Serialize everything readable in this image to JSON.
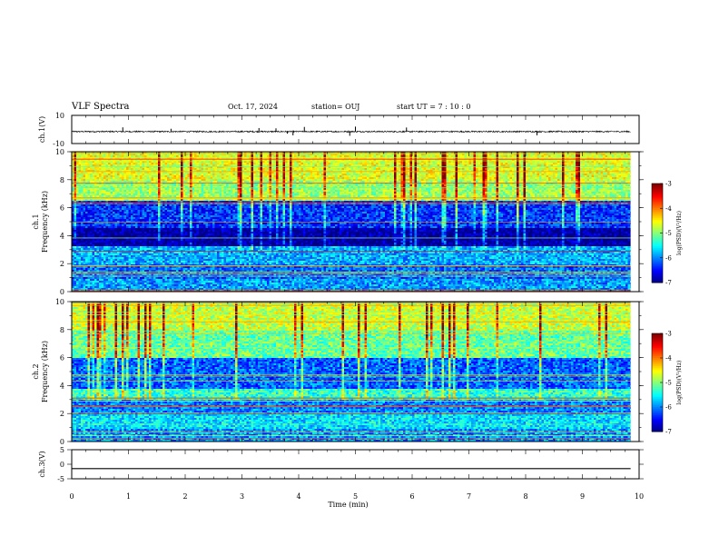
{
  "header": {
    "title": "VLF Spectra",
    "date": "Oct. 17, 2024",
    "station": "station= OUJ",
    "start": "start  UT =   7 : 10 : 0"
  },
  "chart_data": [
    {
      "type": "line",
      "name": "ch1-waveform",
      "ylabel": "ch.1(V)",
      "ylim": [
        -10,
        10
      ],
      "yticks": [
        10,
        -10
      ],
      "xlim": [
        0,
        10
      ],
      "baseline": -1.5,
      "noise_amplitude": 0.5,
      "spikes": [
        {
          "x": 0.9,
          "y": 1.5
        },
        {
          "x": 1.75,
          "y": 0.5
        },
        {
          "x": 3.3,
          "y": 1.0
        },
        {
          "x": 3.45,
          "y": -1.5
        },
        {
          "x": 3.6,
          "y": 0.8
        },
        {
          "x": 3.8,
          "y": -3.0
        },
        {
          "x": 3.9,
          "y": -4.2
        },
        {
          "x": 4.1,
          "y": 1.8
        },
        {
          "x": 4.9,
          "y": -4.5
        },
        {
          "x": 5.0,
          "y": 2.0
        },
        {
          "x": 5.9,
          "y": 1.4
        },
        {
          "x": 7.1,
          "y": -2.0
        },
        {
          "x": 8.2,
          "y": -4.2
        }
      ]
    },
    {
      "type": "heatmap",
      "name": "ch1-spectrogram",
      "ylabel": "ch.1\nFrequency (kHz)",
      "ylabel_line1": "ch.1",
      "ylabel_line2": "Frequency (kHz)",
      "xlim": [
        0,
        10
      ],
      "ylim": [
        0,
        10
      ],
      "yticks": [
        0,
        2,
        4,
        6,
        8,
        10
      ],
      "colorbar": {
        "label": "log(PSD)(V²/Hz)",
        "range": [
          -7,
          -3
        ],
        "ticks": [
          -3,
          -4,
          -5,
          -6,
          -7
        ]
      },
      "bands": [
        {
          "from": 0,
          "to": 1.0,
          "level": -5.9
        },
        {
          "from": 1.0,
          "to": 2.0,
          "level": -6.1
        },
        {
          "from": 2.0,
          "to": 3.3,
          "level": -5.8
        },
        {
          "from": 3.3,
          "to": 4.6,
          "level": -6.9
        },
        {
          "from": 4.6,
          "to": 6.5,
          "level": -6.3
        },
        {
          "from": 6.5,
          "to": 8.0,
          "level": -4.9
        },
        {
          "from": 8.0,
          "to": 10.0,
          "level": -4.6
        }
      ]
    },
    {
      "type": "heatmap",
      "name": "ch2-spectrogram",
      "ylabel": "ch.2\nFrequency (kHz)",
      "ylabel_line1": "ch.2",
      "ylabel_line2": "Frequency (kHz)",
      "xlim": [
        0,
        10
      ],
      "ylim": [
        0,
        10
      ],
      "yticks": [
        0,
        2,
        4,
        6,
        8,
        10
      ],
      "colorbar": {
        "label": "log(PSD)(V²/Hz)",
        "range": [
          -7,
          -3
        ],
        "ticks": [
          -3,
          -4,
          -5,
          -6,
          -7
        ]
      },
      "bands": [
        {
          "from": 0,
          "to": 1.0,
          "level": -5.9
        },
        {
          "from": 1.0,
          "to": 2.2,
          "level": -5.6
        },
        {
          "from": 2.2,
          "to": 3.0,
          "level": -6.0
        },
        {
          "from": 3.0,
          "to": 3.8,
          "level": -5.3
        },
        {
          "from": 3.8,
          "to": 6.0,
          "level": -6.1
        },
        {
          "from": 6.0,
          "to": 8.0,
          "level": -5.1
        },
        {
          "from": 8.0,
          "to": 10.0,
          "level": -4.7
        }
      ]
    },
    {
      "type": "line",
      "name": "ch3-waveform",
      "ylabel": "ch.3(V)",
      "ylim": [
        -5,
        5
      ],
      "yticks": [
        5,
        0,
        -5
      ],
      "xlim": [
        0,
        10
      ],
      "constant": -1.5,
      "xlabel": "Time (min)",
      "xticks": [
        0,
        1,
        2,
        3,
        4,
        5,
        6,
        7,
        8,
        9,
        10
      ],
      "data_end": 9.85
    }
  ]
}
